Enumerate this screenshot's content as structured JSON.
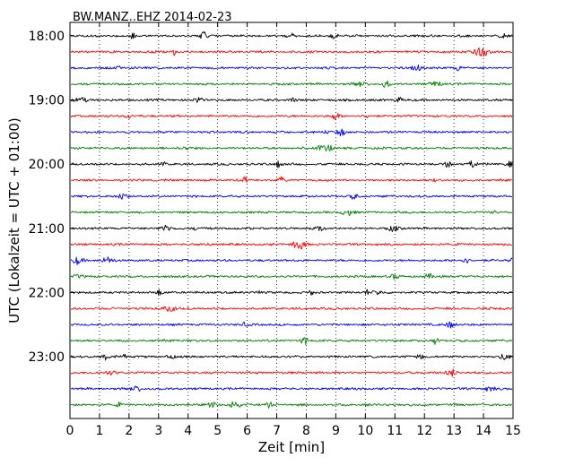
{
  "chart_data": {
    "type": "line",
    "title": "BW.MANZ..EHZ 2014-02-23",
    "xlabel": "Zeit  [min]",
    "ylabel": "UTC (Lokalzeit = UTC + 01:00)",
    "xlim": [
      0,
      15
    ],
    "x_ticks": [
      "0",
      "1",
      "2",
      "3",
      "4",
      "5",
      "6",
      "7",
      "8",
      "9",
      "10",
      "11",
      "12",
      "13",
      "14",
      "15"
    ],
    "y_ticks": [
      "18:00",
      "19:00",
      "20:00",
      "21:00",
      "22:00",
      "23:00"
    ],
    "grid": "vertical-dotted",
    "trace_interval_minutes": 15,
    "color_cycle": [
      "#000000",
      "#ff0000",
      "#0000ff",
      "#008000"
    ],
    "series": [
      {
        "start": "18:00",
        "color": "#000000"
      },
      {
        "start": "18:15",
        "color": "#ff0000"
      },
      {
        "start": "18:30",
        "color": "#0000ff"
      },
      {
        "start": "18:45",
        "color": "#008000"
      },
      {
        "start": "19:00",
        "color": "#000000"
      },
      {
        "start": "19:15",
        "color": "#ff0000"
      },
      {
        "start": "19:30",
        "color": "#0000ff"
      },
      {
        "start": "19:45",
        "color": "#008000"
      },
      {
        "start": "20:00",
        "color": "#000000"
      },
      {
        "start": "20:15",
        "color": "#ff0000"
      },
      {
        "start": "20:30",
        "color": "#0000ff"
      },
      {
        "start": "20:45",
        "color": "#008000"
      },
      {
        "start": "21:00",
        "color": "#000000"
      },
      {
        "start": "21:15",
        "color": "#ff0000"
      },
      {
        "start": "21:30",
        "color": "#0000ff"
      },
      {
        "start": "21:45",
        "color": "#008000"
      },
      {
        "start": "22:00",
        "color": "#000000"
      },
      {
        "start": "22:15",
        "color": "#ff0000"
      },
      {
        "start": "22:30",
        "color": "#0000ff"
      },
      {
        "start": "22:45",
        "color": "#008000"
      },
      {
        "start": "23:00",
        "color": "#000000"
      },
      {
        "start": "23:15",
        "color": "#ff0000"
      },
      {
        "start": "23:30",
        "color": "#0000ff"
      },
      {
        "start": "23:45",
        "color": "#008000"
      }
    ]
  }
}
